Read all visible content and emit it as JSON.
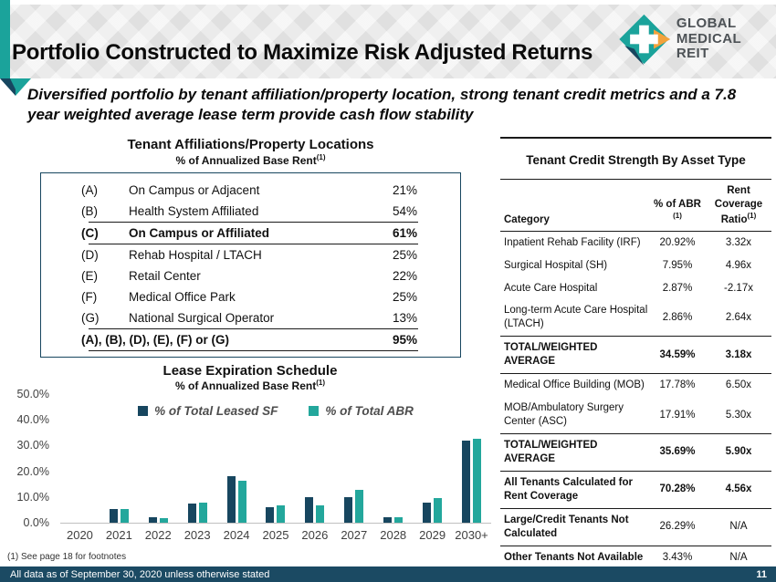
{
  "colors": {
    "navy": "#17465f",
    "teal": "#1ba39b",
    "bar_navy": "#17465f",
    "bar_teal": "#23a79c",
    "orange": "#f2a23c",
    "header_gray": "#e9e9e9",
    "footer_navy": "#1b4a63"
  },
  "header": {
    "title": "Portfolio Constructed to Maximize Risk Adjusted Returns",
    "logo_line1": "GLOBAL",
    "logo_line2": "MEDICAL REIT"
  },
  "subtitle": "Diversified portfolio by tenant affiliation/property location, strong tenant credit metrics and a 7.8 year weighted average lease term provide cash flow stability",
  "affiliations_table": {
    "title": "Tenant Affiliations/Property Locations",
    "subtitle": "% of Annualized Base Rent",
    "subtitle_sup": "(1)",
    "rows": [
      {
        "key": "(A)",
        "label": "On Campus or Adjacent",
        "value": "21%",
        "bold": false,
        "sep_after": false
      },
      {
        "key": "(B)",
        "label": "Health System Affiliated",
        "value": "54%",
        "bold": false,
        "sep_after": true
      },
      {
        "key": "(C)",
        "label": "On Campus or Affiliated",
        "value": "61%",
        "bold": true,
        "sep_after": true
      },
      {
        "key": "(D)",
        "label": "Rehab Hospital / LTACH",
        "value": "25%",
        "bold": false,
        "sep_after": false
      },
      {
        "key": "(E)",
        "label": "Retail Center",
        "value": "22%",
        "bold": false,
        "sep_after": false
      },
      {
        "key": "(F)",
        "label": "Medical Office Park",
        "value": "25%",
        "bold": false,
        "sep_after": false
      },
      {
        "key": "(G)",
        "label": "National Surgical Operator",
        "value": "13%",
        "bold": false,
        "sep_after": true
      },
      {
        "key": "",
        "label": "(A), (B), (D), (E), (F) or (G)",
        "value": "95%",
        "bold": true,
        "sep_after": true
      }
    ]
  },
  "credit_table": {
    "title": "Tenant Credit Strength By Asset Type",
    "headers": {
      "category": "Category",
      "abr": "% of ABR",
      "abr_sup": "(1)",
      "ratio": "Rent Coverage Ratio",
      "ratio_sup": "(1)"
    },
    "rows": [
      {
        "category": "Inpatient Rehab Facility (IRF)",
        "abr": "20.92%",
        "ratio": "3.32x",
        "style": "normal",
        "sep_after": false
      },
      {
        "category": "Surgical Hospital (SH)",
        "abr": "7.95%",
        "ratio": "4.96x",
        "style": "normal",
        "sep_after": false
      },
      {
        "category": "Acute Care Hospital",
        "abr": "2.87%",
        "ratio": "-2.17x",
        "style": "normal",
        "sep_after": false
      },
      {
        "category": "Long-term Acute Care Hospital (LTACH)",
        "abr": "2.86%",
        "ratio": "2.64x",
        "style": "normal",
        "sep_after": true
      },
      {
        "category": "TOTAL/WEIGHTED AVERAGE",
        "abr": "34.59%",
        "ratio": "3.18x",
        "style": "bold",
        "sep_after": true
      },
      {
        "category": "Medical Office Building (MOB)",
        "abr": "17.78%",
        "ratio": "6.50x",
        "style": "normal",
        "sep_after": false
      },
      {
        "category": "MOB/Ambulatory Surgery Center (ASC)",
        "abr": "17.91%",
        "ratio": "5.30x",
        "style": "normal",
        "sep_after": true
      },
      {
        "category": "TOTAL/WEIGHTED AVERAGE",
        "abr": "35.69%",
        "ratio": "5.90x",
        "style": "bold",
        "sep_after": true
      },
      {
        "category": "All Tenants Calculated for Rent Coverage",
        "abr": "70.28%",
        "ratio": "4.56x",
        "style": "bold",
        "sep_after": true
      },
      {
        "category": "Large/Credit Tenants Not Calculated",
        "abr": "26.29%",
        "ratio": "N/A",
        "style": "bold-label",
        "sep_after": true
      },
      {
        "category": "Other Tenants Not Available",
        "abr": "3.43%",
        "ratio": "N/A",
        "style": "bold-label",
        "sep_after": true
      }
    ]
  },
  "chart_data": {
    "type": "bar",
    "title": "Lease Expiration Schedule",
    "subtitle": "% of Annualized Base Rent",
    "subtitle_sup": "(1)",
    "categories": [
      "2020",
      "2021",
      "2022",
      "2023",
      "2024",
      "2025",
      "2026",
      "2027",
      "2028",
      "2029",
      "2030+"
    ],
    "series": [
      {
        "name": "% of Total Leased SF",
        "color": "#17465f",
        "values": [
          0.0,
          5.3,
          2.2,
          7.5,
          18.2,
          6.0,
          9.9,
          10.1,
          2.2,
          7.8,
          31.8
        ]
      },
      {
        "name": "% of Total ABR",
        "color": "#23a79c",
        "values": [
          0.0,
          5.4,
          1.9,
          7.9,
          16.4,
          6.9,
          6.7,
          12.9,
          2.2,
          9.5,
          32.8
        ]
      }
    ],
    "ylim": [
      0,
      50
    ],
    "ytick_step": 10,
    "ytick_format": "percent_one_decimal",
    "grid": false,
    "legend_position": "top-center"
  },
  "footnote": "(1) See page 18 for footnotes",
  "footer": {
    "text": "All data as of September 30, 2020 unless otherwise stated",
    "page": "11"
  }
}
